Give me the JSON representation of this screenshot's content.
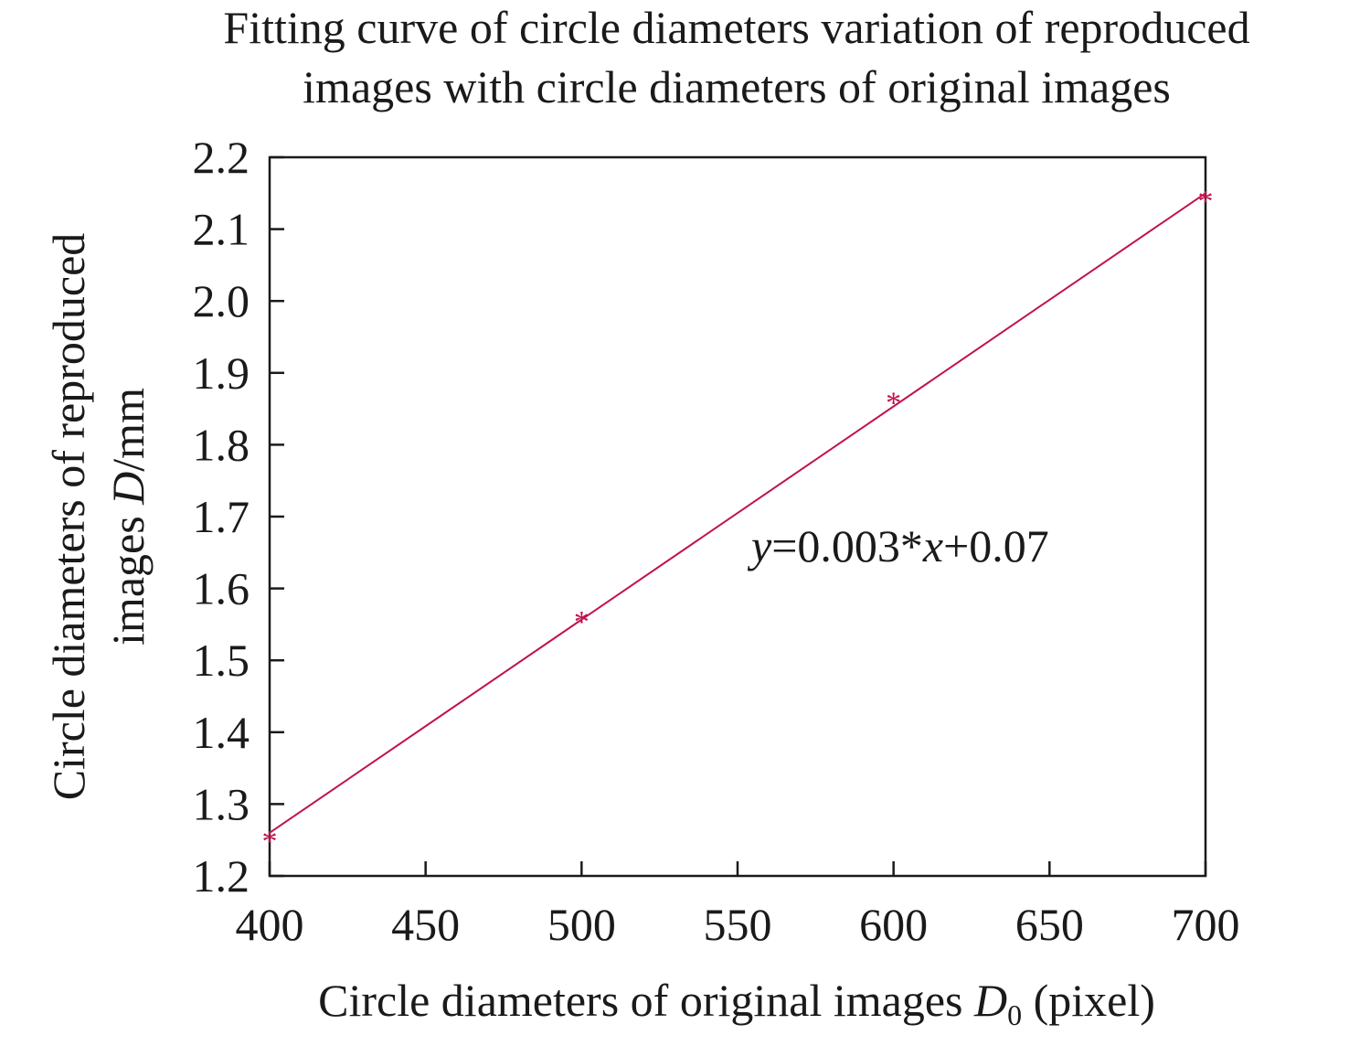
{
  "chart_data": {
    "type": "scatter",
    "title": [
      "Fitting curve of circle diameters variation of reproduced",
      "images with circle diameters of original images"
    ],
    "xlabel": {
      "prefix": "Circle diameters of original images ",
      "var": "D",
      "sub": "0",
      "suffix": " (pixel)"
    },
    "ylabel": {
      "line1": "Circle diameters of reproduced",
      "prefix": "images ",
      "var": "D",
      "suffix": "/mm"
    },
    "xlim": [
      400,
      700
    ],
    "ylim": [
      1.2,
      2.2
    ],
    "x_ticks": [
      "400",
      "450",
      "500",
      "550",
      "600",
      "650",
      "700"
    ],
    "y_ticks": [
      "1.2",
      "1.3",
      "1.4",
      "1.5",
      "1.6",
      "1.7",
      "1.8",
      "1.9",
      "2.0",
      "2.1",
      "2.2"
    ],
    "series": [
      {
        "kind": "points",
        "marker": "*",
        "color": "#c0124e",
        "x": [
          400,
          500,
          600,
          700
        ],
        "y": [
          1.255,
          1.56,
          1.865,
          2.145
        ]
      },
      {
        "kind": "fit-line",
        "color": "#c0124e",
        "x": [
          400,
          700
        ],
        "y": [
          1.26,
          2.15
        ]
      }
    ],
    "annotation": {
      "y_var": "y",
      "mid": "=0.003*",
      "x_var": "x",
      "end": "+0.07"
    },
    "grid": false,
    "legend": "none"
  }
}
